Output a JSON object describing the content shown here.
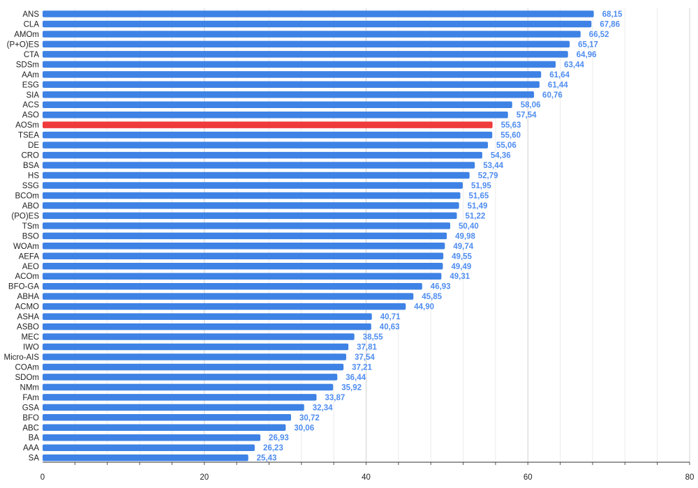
{
  "chart_data": {
    "type": "bar",
    "orientation": "horizontal",
    "title": "",
    "xlabel": "",
    "ylabel": "",
    "xlim": [
      0,
      80
    ],
    "x_ticks": [
      0,
      20,
      40,
      60,
      80
    ],
    "grid": true,
    "legend": "none",
    "colors": {
      "default": "#3e82e5",
      "highlight": "#ef3b3b",
      "label": "#4f8df0"
    },
    "highlight_category": "AOSm",
    "categories": [
      "ANS",
      "CLA",
      "AMOm",
      "(P+O)ES",
      "CTA",
      "SDSm",
      "AAm",
      "ESG",
      "SIA",
      "ACS",
      "ASO",
      "AOSm",
      "TSEA",
      "DE",
      "CRO",
      "BSA",
      "HS",
      "SSG",
      "BCOm",
      "ABO",
      "(PO)ES",
      "TSm",
      "BSO",
      "WOAm",
      "AEFA",
      "AEO",
      "ACOm",
      "BFO-GA",
      "ABHA",
      "ACMO",
      "ASHA",
      "ASBO",
      "MEC",
      "IWO",
      "Micro-AIS",
      "COAm",
      "SDOm",
      "NMm",
      "FAm",
      "GSA",
      "BFO",
      "ABC",
      "BA",
      "AAA",
      "SA"
    ],
    "values": [
      68.15,
      67.86,
      66.52,
      65.17,
      64.96,
      63.44,
      61.64,
      61.44,
      60.76,
      58.06,
      57.54,
      55.63,
      55.6,
      55.06,
      54.36,
      53.44,
      52.79,
      51.95,
      51.65,
      51.49,
      51.22,
      50.4,
      49.98,
      49.74,
      49.55,
      49.49,
      49.31,
      46.93,
      45.85,
      44.9,
      40.71,
      40.63,
      38.55,
      37.81,
      37.54,
      37.21,
      36.44,
      35.92,
      33.87,
      32.34,
      30.72,
      30.06,
      26.93,
      26.23,
      25.43
    ],
    "value_labels": [
      "68,15",
      "67,86",
      "66,52",
      "65,17",
      "64,96",
      "63,44",
      "61,64",
      "61,44",
      "60,76",
      "58,06",
      "57,54",
      "55,63",
      "55,60",
      "55,06",
      "54,36",
      "53,44",
      "52,79",
      "51,95",
      "51,65",
      "51,49",
      "51,22",
      "50,40",
      "49,98",
      "49,74",
      "49,55",
      "49,49",
      "49,31",
      "46,93",
      "45,85",
      "44,90",
      "40,71",
      "40,63",
      "38,55",
      "37,81",
      "37,54",
      "37,21",
      "36,44",
      "35,92",
      "33,87",
      "32,34",
      "30,72",
      "30,06",
      "26,93",
      "26,23",
      "25,43"
    ]
  }
}
